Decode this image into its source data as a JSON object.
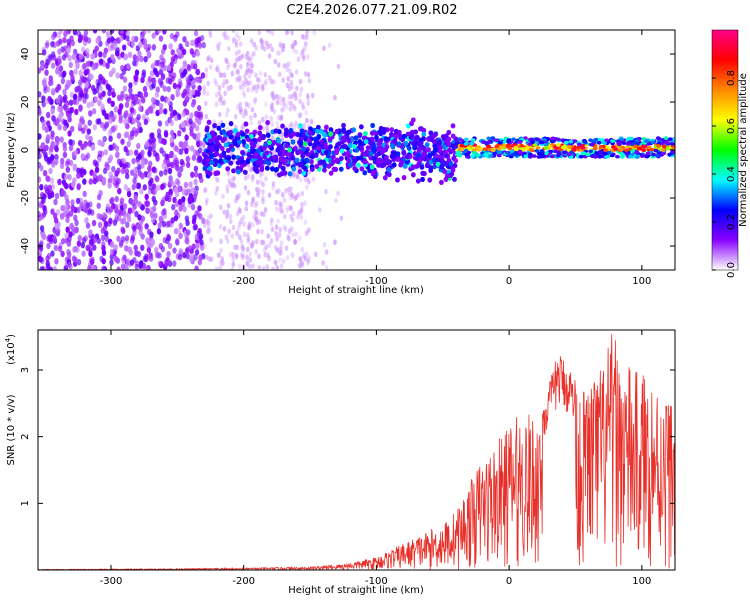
{
  "title": "C2E4.2026.077.21.09.R02",
  "chart_data": [
    {
      "type": "heatmap",
      "xlabel": "Height of straight line (km)",
      "ylabel": "Frequency (Hz)",
      "xlim": [
        -355,
        125
      ],
      "ylim": [
        -50,
        50
      ],
      "xticks": [
        -300,
        -200,
        -100,
        0,
        100
      ],
      "yticks": [
        -40,
        -20,
        0,
        20,
        40
      ],
      "xtick_labels": [
        "-300",
        "-200",
        "-100",
        "0",
        "100"
      ],
      "ytick_labels": [
        "-40",
        "-20",
        "0",
        "20",
        "40"
      ],
      "colorbar": {
        "label": "Normalized spectral amplitude",
        "range": [
          0,
          1
        ],
        "ticks": [
          0.0,
          0.2,
          0.4,
          0.6,
          0.8
        ],
        "tick_labels": [
          "0.0",
          "0.2",
          "0.4",
          "0.6",
          "0.8"
        ],
        "colors": [
          "#ffffff",
          "#8800ff",
          "#0000ff",
          "#00ffff",
          "#00ff00",
          "#ffff00",
          "#ff8800",
          "#ff0000",
          "#ff0088"
        ]
      },
      "regions": [
        {
          "x_range": [
            -355,
            -230
          ],
          "y_range": [
            -50,
            50
          ],
          "amplitude": 0.1,
          "description": "noise"
        },
        {
          "x_range": [
            -230,
            -150
          ],
          "y_range": [
            -50,
            50
          ],
          "amplitude": 0.04,
          "description": "weak noise"
        },
        {
          "x_range": [
            -230,
            -40
          ],
          "y_center": 0,
          "y_width": 10,
          "amplitude": 0.25
        },
        {
          "x_range": [
            -40,
            125
          ],
          "y_center": 1,
          "y_width": 4,
          "amplitude": 0.8
        }
      ]
    },
    {
      "type": "line",
      "xlabel": "Height of straight line (km)",
      "ylabel": "SNR (10 * v/v)",
      "yscale_label": "(x10",
      "yscale_exp": "4",
      "yscale_close": ")",
      "xlim": [
        -355,
        125
      ],
      "ylim": [
        0,
        3.6
      ],
      "xticks": [
        -300,
        -200,
        -100,
        0,
        100
      ],
      "yticks": [
        1,
        2,
        3
      ],
      "xtick_labels": [
        "-300",
        "-200",
        "-100",
        "0",
        "100"
      ],
      "ytick_labels": [
        "1",
        "2",
        "3"
      ],
      "series": [
        {
          "color": "#e8302a",
          "envelope": [
            [
              -355,
              0.01
            ],
            [
              -250,
              0.02
            ],
            [
              -200,
              0.03
            ],
            [
              -150,
              0.05
            ],
            [
              -130,
              0.08
            ],
            [
              -110,
              0.15
            ],
            [
              -100,
              0.2
            ],
            [
              -90,
              0.3
            ],
            [
              -80,
              0.4
            ],
            [
              -70,
              0.5
            ],
            [
              -60,
              0.6
            ],
            [
              -50,
              0.7
            ],
            [
              -40,
              0.9
            ],
            [
              -30,
              1.3
            ],
            [
              -20,
              1.7
            ],
            [
              -10,
              1.9
            ],
            [
              0,
              2.2
            ],
            [
              10,
              2.4
            ],
            [
              20,
              2.3
            ],
            [
              30,
              2.8
            ],
            [
              37,
              3.3
            ],
            [
              45,
              3.1
            ],
            [
              55,
              2.7
            ],
            [
              60,
              2.9
            ],
            [
              70,
              3.1
            ],
            [
              78,
              3.6
            ],
            [
              85,
              3.2
            ],
            [
              95,
              3.0
            ],
            [
              105,
              3.0
            ],
            [
              115,
              2.7
            ],
            [
              125,
              2.6
            ]
          ]
        }
      ]
    }
  ]
}
